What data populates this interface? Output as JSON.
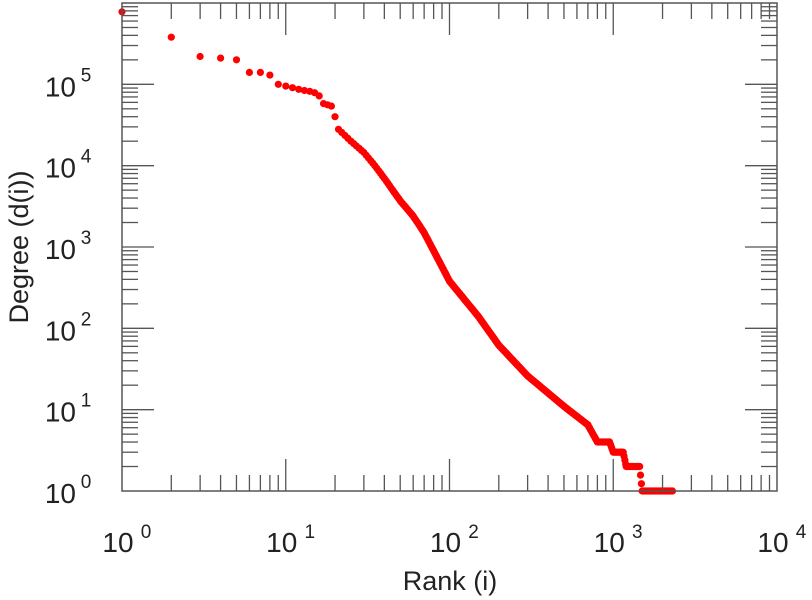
{
  "chart_data": {
    "type": "scatter",
    "title": "",
    "xlabel": "Rank (i)",
    "ylabel": "Degree (d(i))",
    "xscale": "log",
    "yscale": "log",
    "xlim": [
      1,
      10000
    ],
    "ylim": [
      1,
      1000000
    ],
    "grid": false,
    "marker_color": "#ff0000",
    "x_ticks": [
      {
        "base": "10",
        "exp": "0",
        "value": 1
      },
      {
        "base": "10",
        "exp": "1",
        "value": 10
      },
      {
        "base": "10",
        "exp": "2",
        "value": 100
      },
      {
        "base": "10",
        "exp": "3",
        "value": 1000
      },
      {
        "base": "10",
        "exp": "4",
        "value": 10000
      }
    ],
    "y_ticks": [
      {
        "base": "10",
        "exp": "0",
        "value": 1
      },
      {
        "base": "10",
        "exp": "1",
        "value": 10
      },
      {
        "base": "10",
        "exp": "2",
        "value": 100
      },
      {
        "base": "10",
        "exp": "3",
        "value": 1000
      },
      {
        "base": "10",
        "exp": "4",
        "value": 10000
      },
      {
        "base": "10",
        "exp": "5",
        "value": 100000
      }
    ],
    "series": [
      {
        "name": "degree",
        "points": [
          [
            1,
            780000
          ],
          [
            2,
            380000
          ],
          [
            3,
            220000
          ],
          [
            4,
            210000
          ],
          [
            5,
            200000
          ],
          [
            6,
            140000
          ],
          [
            7,
            140000
          ],
          [
            8,
            130000
          ],
          [
            9,
            100000
          ],
          [
            10,
            95000
          ],
          [
            11,
            91000
          ],
          [
            12,
            87000
          ],
          [
            13,
            84000
          ],
          [
            14,
            82000
          ],
          [
            15,
            79000
          ],
          [
            16,
            72000
          ],
          [
            17,
            58000
          ],
          [
            18,
            56000
          ],
          [
            19,
            54000
          ],
          [
            20,
            40000
          ],
          [
            21,
            28000
          ],
          [
            25,
            20000
          ],
          [
            30,
            14500
          ],
          [
            35,
            10000
          ],
          [
            40,
            7000
          ],
          [
            50,
            3700
          ],
          [
            60,
            2400
          ],
          [
            70,
            1500
          ],
          [
            80,
            900
          ],
          [
            100,
            380
          ],
          [
            150,
            140
          ],
          [
            200,
            62
          ],
          [
            300,
            26
          ],
          [
            500,
            11
          ],
          [
            700,
            6.5
          ],
          [
            800,
            4
          ],
          [
            950,
            4
          ],
          [
            1000,
            3
          ],
          [
            1150,
            3
          ],
          [
            1200,
            2
          ],
          [
            1450,
            2
          ],
          [
            1500,
            1
          ],
          [
            2300,
            1
          ]
        ]
      }
    ]
  }
}
